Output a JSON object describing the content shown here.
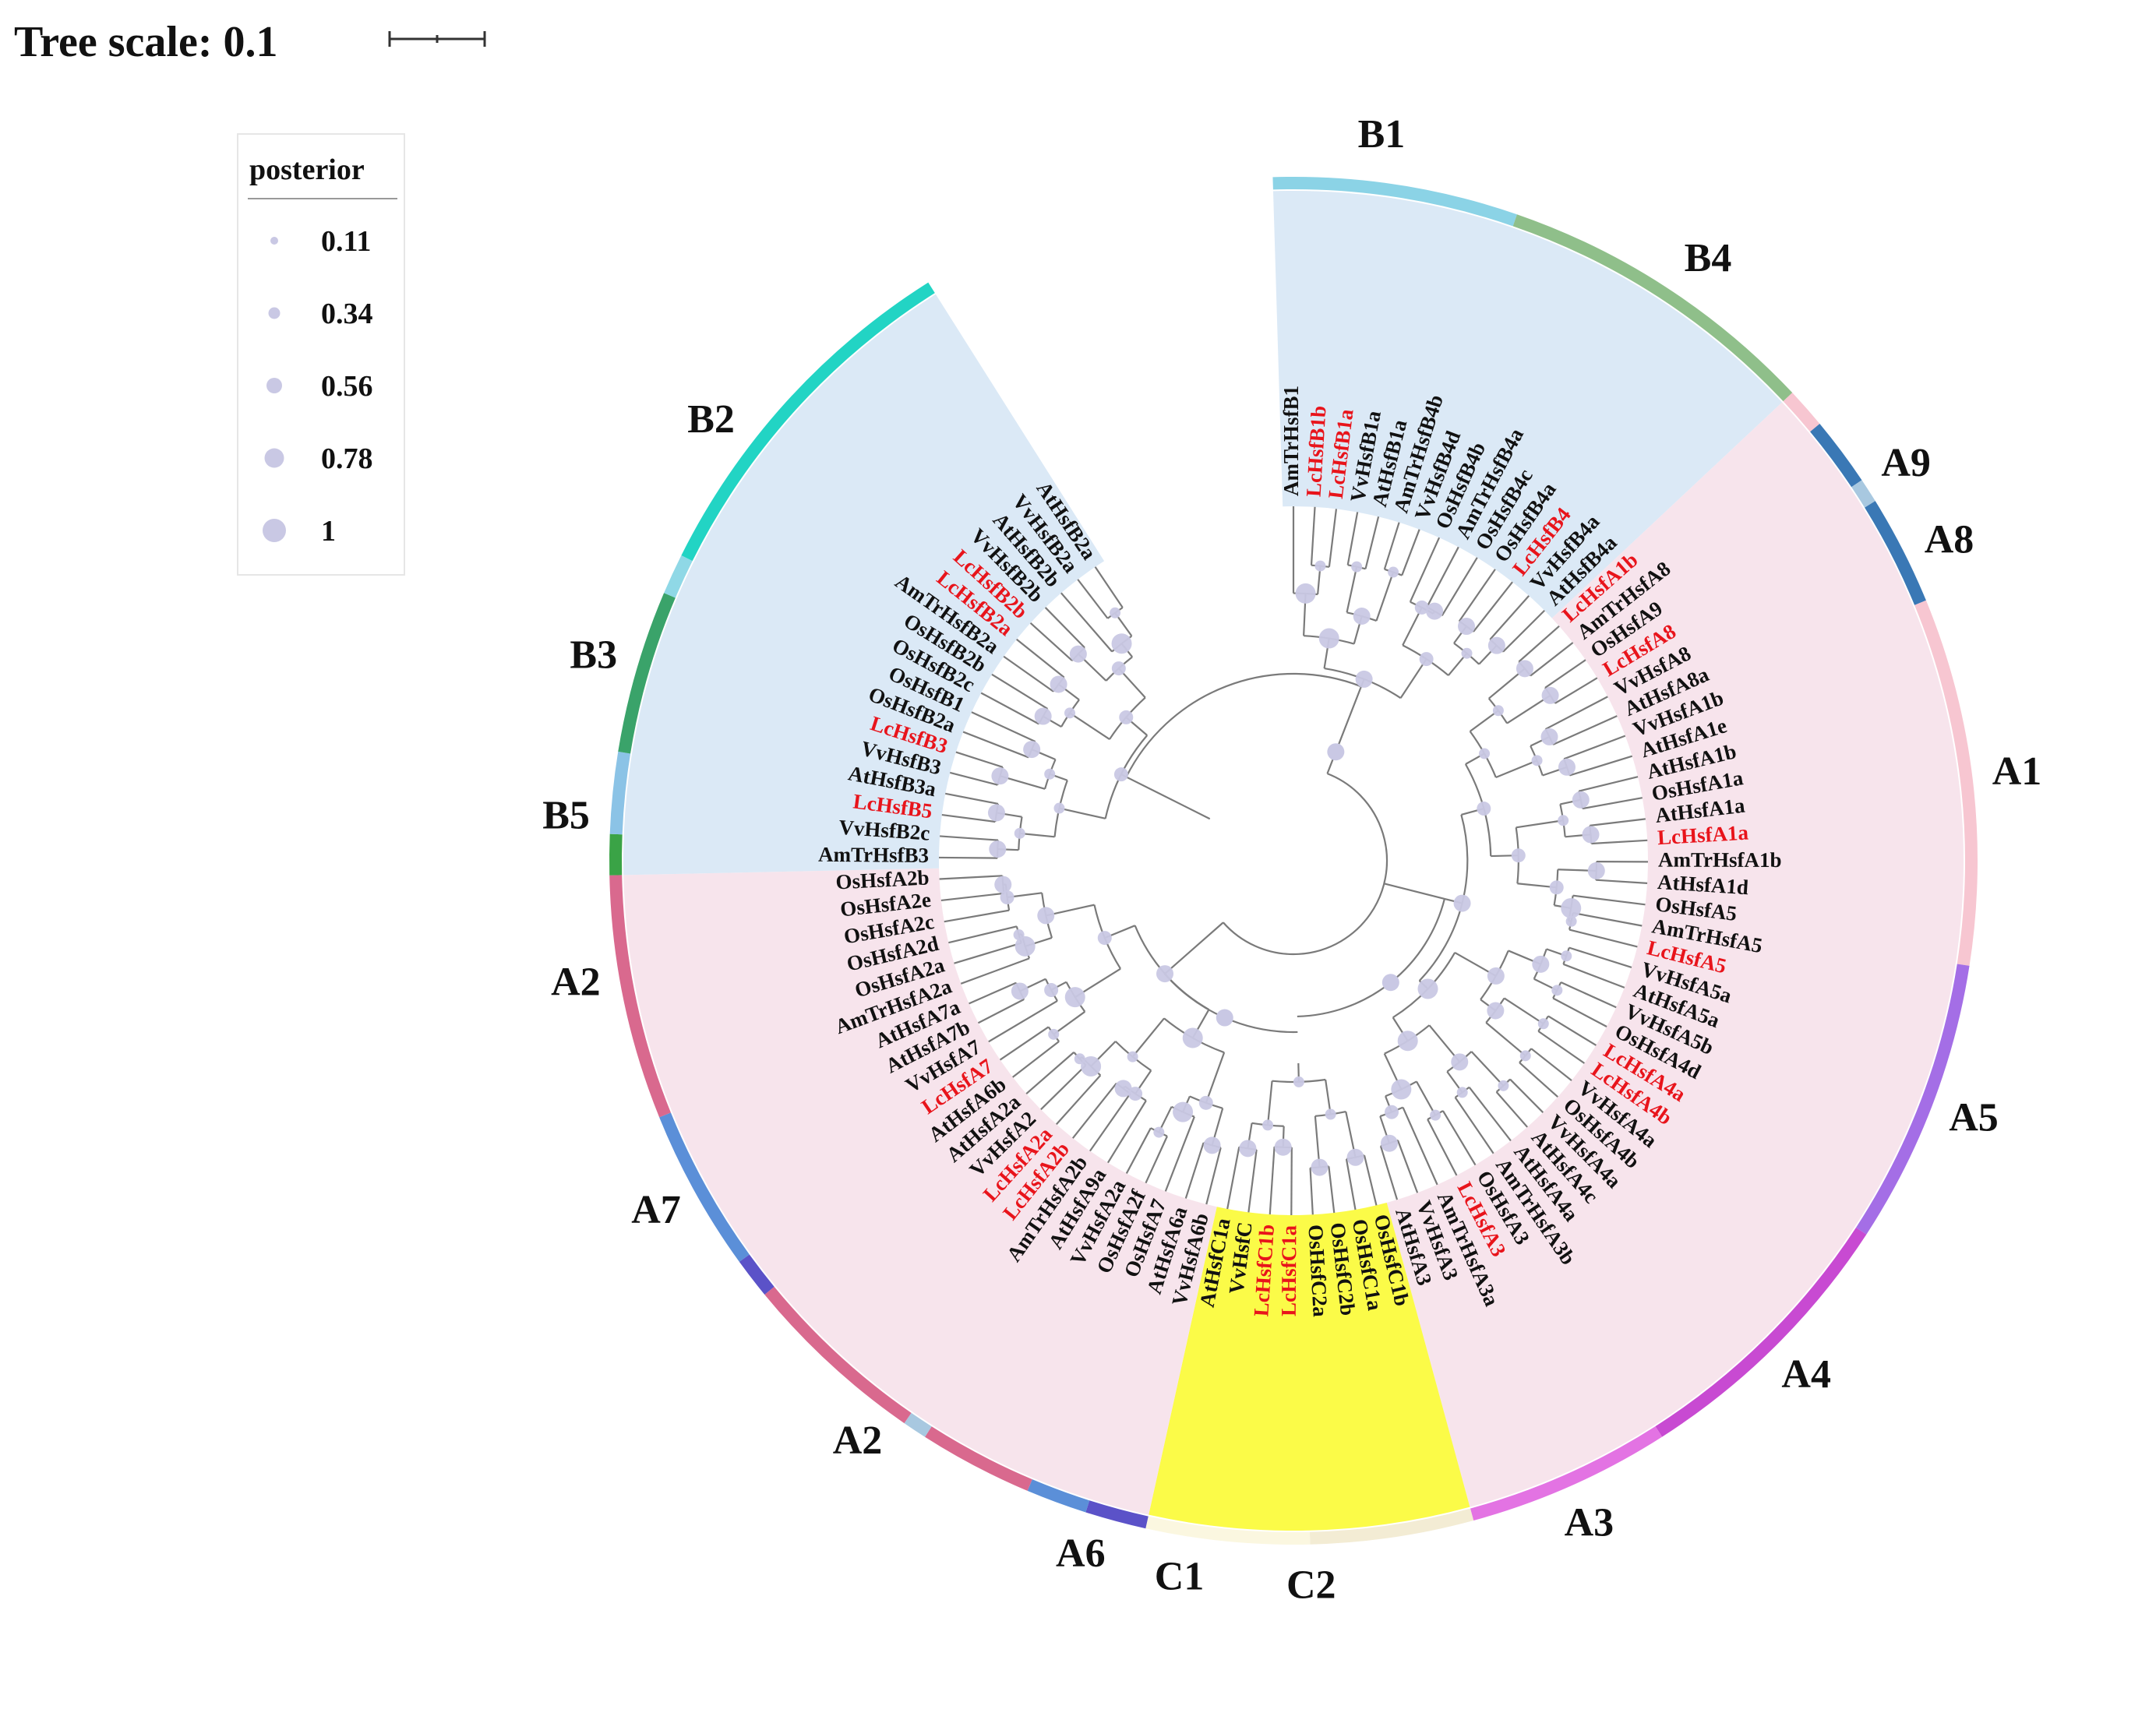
{
  "scale": {
    "label": "Tree scale: 0.1"
  },
  "legend": {
    "title": "posterior",
    "items": [
      {
        "label": "0.11"
      },
      {
        "label": "0.34"
      },
      {
        "label": "0.56"
      },
      {
        "label": "0.78"
      },
      {
        "label": "1"
      }
    ]
  },
  "colors": {
    "highlight_text": "#e8141b",
    "normal_text": "#111111",
    "node_dot": "#c9c8e4",
    "branch": "#7a7a7a",
    "bg_B": "#dbe9f6",
    "bg_A": "#f7e4ec",
    "bg_C": "#fbfb48"
  },
  "tips": [
    {
      "name": "AmTrHsfB1",
      "hl": false
    },
    {
      "name": "LcHsfB1b",
      "hl": true
    },
    {
      "name": "LcHsfB1a",
      "hl": true
    },
    {
      "name": "VvHsfB1a",
      "hl": false
    },
    {
      "name": "AtHsfB1a",
      "hl": false
    },
    {
      "name": "AmTrHsfB4b",
      "hl": false
    },
    {
      "name": "VvHsfB4d",
      "hl": false
    },
    {
      "name": "OsHsfB4b",
      "hl": false
    },
    {
      "name": "AmTrHsfB4a",
      "hl": false
    },
    {
      "name": "OsHsfB4c",
      "hl": false
    },
    {
      "name": "OsHsfB4a",
      "hl": false
    },
    {
      "name": "LcHsfB4",
      "hl": true
    },
    {
      "name": "VvHsfB4a",
      "hl": false
    },
    {
      "name": "AtHsfB4a",
      "hl": false
    },
    {
      "name": "LcHsfA1b",
      "hl": true
    },
    {
      "name": "AmTrHsfA8",
      "hl": false
    },
    {
      "name": "OsHsfA9",
      "hl": false
    },
    {
      "name": "LcHsfA8",
      "hl": true
    },
    {
      "name": "VvHsfA8",
      "hl": false
    },
    {
      "name": "AtHsfA8a",
      "hl": false
    },
    {
      "name": "VvHsfA1b",
      "hl": false
    },
    {
      "name": "AtHsfA1e",
      "hl": false
    },
    {
      "name": "AtHsfA1b",
      "hl": false
    },
    {
      "name": "OsHsfA1a",
      "hl": false
    },
    {
      "name": "AtHsfA1a",
      "hl": false
    },
    {
      "name": "LcHsfA1a",
      "hl": true
    },
    {
      "name": "AmTrHsfA1b",
      "hl": false
    },
    {
      "name": "AtHsfA1d",
      "hl": false
    },
    {
      "name": "OsHsfA5",
      "hl": false
    },
    {
      "name": "AmTrHsfA5",
      "hl": false
    },
    {
      "name": "LcHsfA5",
      "hl": true
    },
    {
      "name": "VvHsfA5a",
      "hl": false
    },
    {
      "name": "AtHsfA5a",
      "hl": false
    },
    {
      "name": "VvHsfA5b",
      "hl": false
    },
    {
      "name": "OsHsfA4d",
      "hl": false
    },
    {
      "name": "LcHsfA4a",
      "hl": true
    },
    {
      "name": "LcHsfA4b",
      "hl": true
    },
    {
      "name": "VvHsfA4a",
      "hl": false
    },
    {
      "name": "OsHsfA4b",
      "hl": false
    },
    {
      "name": "VvHsfA4a",
      "hl": false
    },
    {
      "name": "AtHsfA4c",
      "hl": false
    },
    {
      "name": "AtHsfA4a",
      "hl": false
    },
    {
      "name": "AmTrHsfA3b",
      "hl": false
    },
    {
      "name": "OsHsfA3",
      "hl": false
    },
    {
      "name": "LcHsfA3",
      "hl": true
    },
    {
      "name": "AmTrHsfA3a",
      "hl": false
    },
    {
      "name": "VvHsfA3",
      "hl": false
    },
    {
      "name": "AtHsfA3",
      "hl": false
    },
    {
      "name": "OsHsfC1b",
      "hl": false
    },
    {
      "name": "OsHsfC1a",
      "hl": false
    },
    {
      "name": "OsHsfC2b",
      "hl": false
    },
    {
      "name": "OsHsfC2a",
      "hl": false
    },
    {
      "name": "LcHsfC1a",
      "hl": true
    },
    {
      "name": "LcHsfC1b",
      "hl": true
    },
    {
      "name": "VvHsfC",
      "hl": false
    },
    {
      "name": "AtHsfC1a",
      "hl": false
    },
    {
      "name": "VvHsfA6b",
      "hl": false
    },
    {
      "name": "AtHsfA6a",
      "hl": false
    },
    {
      "name": "OsHsfA7",
      "hl": false
    },
    {
      "name": "OsHsfA2f",
      "hl": false
    },
    {
      "name": "VvHsfA2a",
      "hl": false
    },
    {
      "name": "AtHsfA9a",
      "hl": false
    },
    {
      "name": "AmTrHsfA2b",
      "hl": false
    },
    {
      "name": "LcHsfA2b",
      "hl": true
    },
    {
      "name": "LcHsfA2a",
      "hl": true
    },
    {
      "name": "VvHsfA2",
      "hl": false
    },
    {
      "name": "AtHsfA2a",
      "hl": false
    },
    {
      "name": "AtHsfA6b",
      "hl": false
    },
    {
      "name": "LcHsfA7",
      "hl": true
    },
    {
      "name": "VvHsfA7",
      "hl": false
    },
    {
      "name": "AtHsfA7b",
      "hl": false
    },
    {
      "name": "AtHsfA7a",
      "hl": false
    },
    {
      "name": "AmTrHsfA2a",
      "hl": false
    },
    {
      "name": "OsHsfA2a",
      "hl": false
    },
    {
      "name": "OsHsfA2d",
      "hl": false
    },
    {
      "name": "OsHsfA2c",
      "hl": false
    },
    {
      "name": "OsHsfA2e",
      "hl": false
    },
    {
      "name": "OsHsfA2b",
      "hl": false
    },
    {
      "name": "AmTrHsfB3",
      "hl": false
    },
    {
      "name": "VvHsfB2c",
      "hl": false
    },
    {
      "name": "LcHsfB5",
      "hl": true
    },
    {
      "name": "AtHsfB3a",
      "hl": false
    },
    {
      "name": "VvHsfB3",
      "hl": false
    },
    {
      "name": "LcHsfB3",
      "hl": true
    },
    {
      "name": "OsHsfB2a",
      "hl": false
    },
    {
      "name": "OsHsfB1",
      "hl": false
    },
    {
      "name": "OsHsfB2c",
      "hl": false
    },
    {
      "name": "OsHsfB2b",
      "hl": false
    },
    {
      "name": "AmTrHsfB2a",
      "hl": false
    },
    {
      "name": "LcHsfB2a",
      "hl": true
    },
    {
      "name": "LcHsfB2b",
      "hl": true
    },
    {
      "name": "VvHsfB2b",
      "hl": false
    },
    {
      "name": "AtHsfB2b",
      "hl": false
    },
    {
      "name": "VvHsfB2a",
      "hl": false
    },
    {
      "name": "AtHsfB2a",
      "hl": false
    }
  ],
  "ring_segments": [
    {
      "from": -0.5,
      "to": 5.5,
      "color": "#8bd3e6"
    },
    {
      "from": 5.5,
      "to": 13.5,
      "color": "#8fbf8a"
    },
    {
      "from": 13.5,
      "to": 14.5,
      "color": "#f7c6d1"
    },
    {
      "from": 14.5,
      "to": 16.2,
      "color": "#3a78b5"
    },
    {
      "from": 16.2,
      "to": 16.8,
      "color": "#a8c8e0"
    },
    {
      "from": 16.8,
      "to": 19.5,
      "color": "#3a78b5"
    },
    {
      "from": 19.5,
      "to": 28.5,
      "color": "#f7c6d1"
    },
    {
      "from": 28.5,
      "to": 35.5,
      "color": "#a46ee6"
    },
    {
      "from": 35.5,
      "to": 42.5,
      "color": "#c84ad2"
    },
    {
      "from": 42.5,
      "to": 47.5,
      "color": "#e373e3"
    },
    {
      "from": 47.5,
      "to": 51.5,
      "color": "#f3ecd4"
    },
    {
      "from": 51.5,
      "to": 55.5,
      "color": "#fbf7e0"
    },
    {
      "from": 55.5,
      "to": 57.0,
      "color": "#5b52c8"
    },
    {
      "from": 57.0,
      "to": 58.5,
      "color": "#5b8fd8"
    },
    {
      "from": 58.5,
      "to": 61.3,
      "color": "#d9698e"
    },
    {
      "from": 61.3,
      "to": 61.9,
      "color": "#a8c8e0"
    },
    {
      "from": 61.9,
      "to": 66.5,
      "color": "#d9698e"
    },
    {
      "from": 66.5,
      "to": 67.5,
      "color": "#5b52c8"
    },
    {
      "from": 67.5,
      "to": 71.5,
      "color": "#5b8fd8"
    },
    {
      "from": 71.5,
      "to": 77.5,
      "color": "#d9698e"
    },
    {
      "from": 77.5,
      "to": 78.5,
      "color": "#3aa346"
    },
    {
      "from": 78.5,
      "to": 80.5,
      "color": "#8bc3e6"
    },
    {
      "from": 80.5,
      "to": 84.5,
      "color": "#3aa36a"
    },
    {
      "from": 84.5,
      "to": 85.5,
      "color": "#8fd8e6"
    },
    {
      "from": 85.5,
      "to": 94.5,
      "color": "#22d4c4"
    }
  ],
  "clades": [
    {
      "label": "B1",
      "pos": 2.0
    },
    {
      "label": "B4",
      "pos": 10.0
    },
    {
      "label": "A9",
      "pos": 16.5
    },
    {
      "label": "A8",
      "pos": 18.5
    },
    {
      "label": "A1",
      "pos": 24.0
    },
    {
      "label": "A5",
      "pos": 32.0
    },
    {
      "label": "A4",
      "pos": 39.0
    },
    {
      "label": "A3",
      "pos": 45.0
    },
    {
      "label": "C2",
      "pos": 51.5
    },
    {
      "label": "C1",
      "pos": 54.5
    },
    {
      "label": "A6",
      "pos": 56.8
    },
    {
      "label": "A2",
      "pos": 62.5
    },
    {
      "label": "A7",
      "pos": 69.5
    },
    {
      "label": "A2",
      "pos": 75.0
    },
    {
      "label": "B5",
      "pos": 78.8
    },
    {
      "label": "B3",
      "pos": 82.5
    },
    {
      "label": "B2",
      "pos": 88.5
    }
  ]
}
